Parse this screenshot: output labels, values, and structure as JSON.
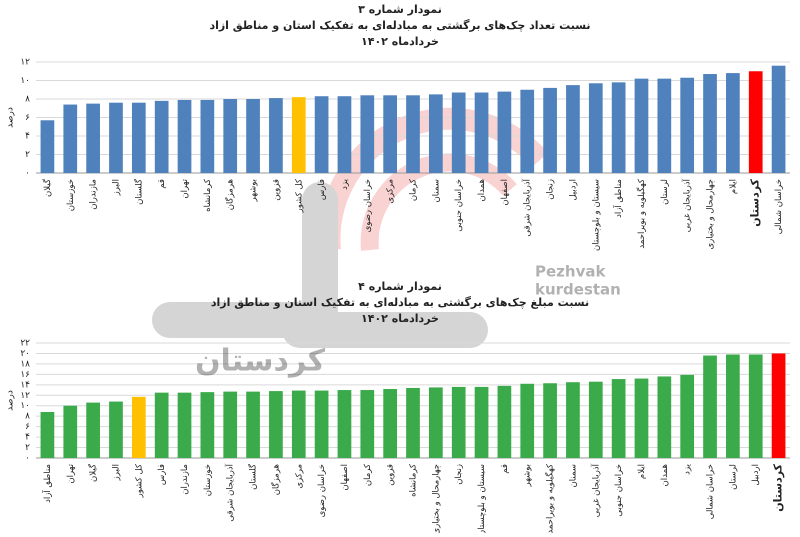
{
  "chart_data": [
    {
      "type": "bar",
      "title": "نمودار شماره ۳",
      "subtitle": "نسبت تعداد چک‌های برگشتی به مبادله‌ای به تفکیک استان و مناطق ازاد",
      "date": "خردادماه ۱۴۰۲",
      "y_label": "درصد",
      "categories": [
        "گیلان",
        "خوزستان",
        "مازندران",
        "البرز",
        "گلستان",
        "قم",
        "تهران",
        "کرمانشاه",
        "هرمزگان",
        "بوشهر",
        "قزوین",
        "کل کشور",
        "فارس",
        "یزد",
        "خراسان رضوی",
        "مرکزی",
        "کرمان",
        "سمنان",
        "خراسان جنوبی",
        "همدان",
        "اصفهان",
        "آذربایجان شرقی",
        "زنجان",
        "اردبیل",
        "سیستان و بلوچستان",
        "مناطق آزاد",
        "کهگیلویه و بویراحمد",
        "لرستان",
        "آذربایجان غربی",
        "چهارمحال و بختیاری",
        "ایلام",
        "کردستان",
        "خراسان شمالی"
      ],
      "values": [
        5.7,
        7.4,
        7.5,
        7.6,
        7.6,
        7.8,
        7.9,
        7.9,
        8.0,
        8.0,
        8.1,
        8.2,
        8.3,
        8.3,
        8.4,
        8.4,
        8.4,
        8.5,
        8.7,
        8.7,
        8.8,
        9.0,
        9.2,
        9.5,
        9.7,
        9.8,
        10.2,
        10.2,
        10.3,
        10.7,
        10.8,
        11.0,
        11.6
      ],
      "colors": [
        "#4f81bd",
        "#4f81bd",
        "#4f81bd",
        "#4f81bd",
        "#4f81bd",
        "#4f81bd",
        "#4f81bd",
        "#4f81bd",
        "#4f81bd",
        "#4f81bd",
        "#4f81bd",
        "#ffc000",
        "#4f81bd",
        "#4f81bd",
        "#4f81bd",
        "#4f81bd",
        "#4f81bd",
        "#4f81bd",
        "#4f81bd",
        "#4f81bd",
        "#4f81bd",
        "#4f81bd",
        "#4f81bd",
        "#4f81bd",
        "#4f81bd",
        "#4f81bd",
        "#4f81bd",
        "#4f81bd",
        "#4f81bd",
        "#4f81bd",
        "#4f81bd",
        "#ff0000",
        "#4f81bd"
      ],
      "ylim": [
        0,
        12
      ],
      "yticks": [
        {
          "value": 0,
          "label": "۰"
        },
        {
          "value": 2,
          "label": "۲"
        },
        {
          "value": 4,
          "label": "۴"
        },
        {
          "value": 6,
          "label": "۶"
        },
        {
          "value": 8,
          "label": "۸"
        },
        {
          "value": 10,
          "label": "۱۰"
        },
        {
          "value": 12,
          "label": "۱۲"
        }
      ],
      "grid": true
    },
    {
      "type": "bar",
      "title": "نمودار شماره ۴",
      "subtitle": "نسبت مبلغ چک‌های برگشتی به مبادله‌ای به تفکیک استان و مناطق ازاد",
      "date": "خردادماه ۱۴۰۲",
      "y_label": "درصد",
      "categories": [
        "مناطق آزاد",
        "تهران",
        "گیلان",
        "البرز",
        "کل کشور",
        "فارس",
        "مازندران",
        "خوزستان",
        "آذربایجان شرقی",
        "گلستان",
        "هرمزگان",
        "مرکزی",
        "خراسان رضوی",
        "اصفهان",
        "کرمان",
        "قزوین",
        "کرمانشاه",
        "چهارمحال و بختیاری",
        "زنجان",
        "سیستان و بلوچستان",
        "قم",
        "بوشهر",
        "کهگیلویه و بویراحمد",
        "سمنان",
        "آذربایجان غربی",
        "خراسان جنوبی",
        "ایلام",
        "همدان",
        "یزد",
        "خراسان شمالی",
        "لرستان",
        "اردبیل",
        "کردستان"
      ],
      "values": [
        8.8,
        10.0,
        10.6,
        10.8,
        11.7,
        12.5,
        12.5,
        12.6,
        12.7,
        12.7,
        12.8,
        12.9,
        12.9,
        13.0,
        13.0,
        13.2,
        13.4,
        13.5,
        13.6,
        13.6,
        13.8,
        14.2,
        14.3,
        14.5,
        14.6,
        15.1,
        15.2,
        15.6,
        15.9,
        19.6,
        19.8,
        19.8,
        20.0
      ],
      "colors": [
        "#3aaa4a",
        "#3aaa4a",
        "#3aaa4a",
        "#3aaa4a",
        "#ffc000",
        "#3aaa4a",
        "#3aaa4a",
        "#3aaa4a",
        "#3aaa4a",
        "#3aaa4a",
        "#3aaa4a",
        "#3aaa4a",
        "#3aaa4a",
        "#3aaa4a",
        "#3aaa4a",
        "#3aaa4a",
        "#3aaa4a",
        "#3aaa4a",
        "#3aaa4a",
        "#3aaa4a",
        "#3aaa4a",
        "#3aaa4a",
        "#3aaa4a",
        "#3aaa4a",
        "#3aaa4a",
        "#3aaa4a",
        "#3aaa4a",
        "#3aaa4a",
        "#3aaa4a",
        "#3aaa4a",
        "#3aaa4a",
        "#3aaa4a",
        "#ff0000"
      ],
      "ylim": [
        0,
        22
      ],
      "yticks": [
        {
          "value": 0,
          "label": "۰"
        },
        {
          "value": 2,
          "label": "۲"
        },
        {
          "value": 4,
          "label": "۴"
        },
        {
          "value": 6,
          "label": "۶"
        },
        {
          "value": 8,
          "label": "۸"
        },
        {
          "value": 10,
          "label": "۱۰"
        },
        {
          "value": 12,
          "label": "۱۲"
        },
        {
          "value": 14,
          "label": "۱۴"
        },
        {
          "value": 16,
          "label": "۱۶"
        },
        {
          "value": 18,
          "label": "۱۸"
        },
        {
          "value": 20,
          "label": "۲۰"
        },
        {
          "value": 22,
          "label": "۲۲"
        }
      ],
      "grid": true
    }
  ],
  "watermark": {
    "brand_line1": "Pezhvak",
    "brand_line2": "kurdestan",
    "word": "کردستان"
  }
}
